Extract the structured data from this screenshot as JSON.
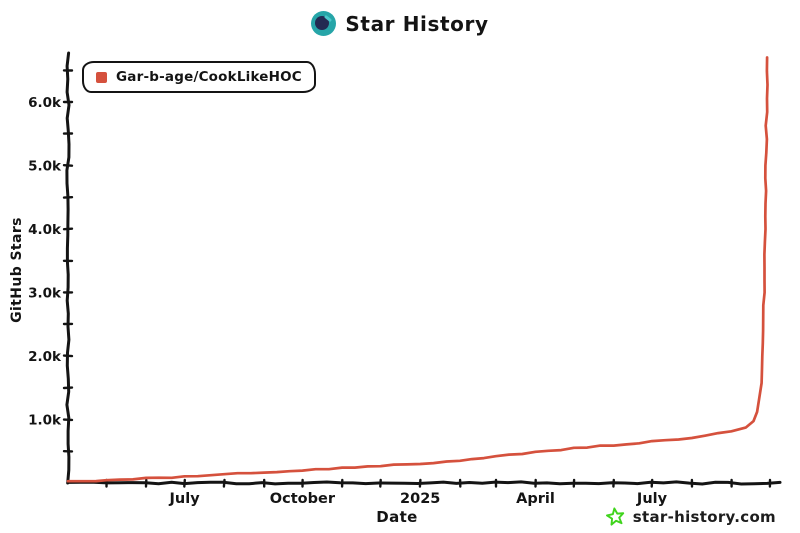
{
  "header": {
    "title": "Star History"
  },
  "legend": {
    "series_label": "Gar-b-age/CookLikeHOC"
  },
  "axes": {
    "y_title": "GitHub Stars",
    "x_title": "Date"
  },
  "watermark": {
    "text": "star-history.com"
  },
  "colors": {
    "ink": "#141414",
    "series": "#d5513d",
    "logo_teal": "#26a5a8",
    "logo_navy": "#232a52",
    "logo_glint": "#4cc8cb",
    "star_green": "#3fd41c"
  },
  "chart_data": {
    "type": "line",
    "title": "Star History",
    "xlabel": "Date",
    "ylabel": "GitHub Stars",
    "grid": false,
    "legend_position": "top-left",
    "x_range": [
      "2024-04-01",
      "2025-10-05"
    ],
    "y_range": [
      0,
      6740
    ],
    "x_ticks": [
      {
        "date": "2024-07-01",
        "label": "July"
      },
      {
        "date": "2024-10-01",
        "label": "October"
      },
      {
        "date": "2025-01-01",
        "label": "2025"
      },
      {
        "date": "2025-04-01",
        "label": "April"
      },
      {
        "date": "2025-07-01",
        "label": "July"
      }
    ],
    "y_ticks": [
      {
        "value": 1000,
        "label": "1.0k"
      },
      {
        "value": 2000,
        "label": "2.0k"
      },
      {
        "value": 3000,
        "label": "3.0k"
      },
      {
        "value": 4000,
        "label": "4.0k"
      },
      {
        "value": 5000,
        "label": "5.0k"
      },
      {
        "value": 6000,
        "label": "6.0k"
      }
    ],
    "y_minor_tick_interval": 500,
    "x_minor_tick_interval": "month",
    "series": [
      {
        "name": "Gar-b-age/CookLikeHOC",
        "color": "#d5513d",
        "points": [
          [
            "2024-04-01",
            5
          ],
          [
            "2024-04-15",
            20
          ],
          [
            "2024-05-01",
            40
          ],
          [
            "2024-06-01",
            70
          ],
          [
            "2024-07-01",
            100
          ],
          [
            "2024-08-01",
            135
          ],
          [
            "2024-09-01",
            168
          ],
          [
            "2024-10-01",
            205
          ],
          [
            "2024-11-01",
            238
          ],
          [
            "2024-12-01",
            268
          ],
          [
            "2025-01-01",
            300
          ],
          [
            "2025-02-01",
            350
          ],
          [
            "2025-03-01",
            420
          ],
          [
            "2025-04-01",
            490
          ],
          [
            "2025-05-01",
            545
          ],
          [
            "2025-06-01",
            600
          ],
          [
            "2025-07-01",
            650
          ],
          [
            "2025-08-01",
            715
          ],
          [
            "2025-09-01",
            810
          ],
          [
            "2025-09-12",
            880
          ],
          [
            "2025-09-18",
            980
          ],
          [
            "2025-09-21",
            1120
          ],
          [
            "2025-09-23",
            1350
          ],
          [
            "2025-09-25",
            1800
          ],
          [
            "2025-09-26",
            2400
          ],
          [
            "2025-09-27",
            3600
          ],
          [
            "2025-09-28",
            5200
          ],
          [
            "2025-09-29",
            6700
          ]
        ]
      }
    ]
  }
}
